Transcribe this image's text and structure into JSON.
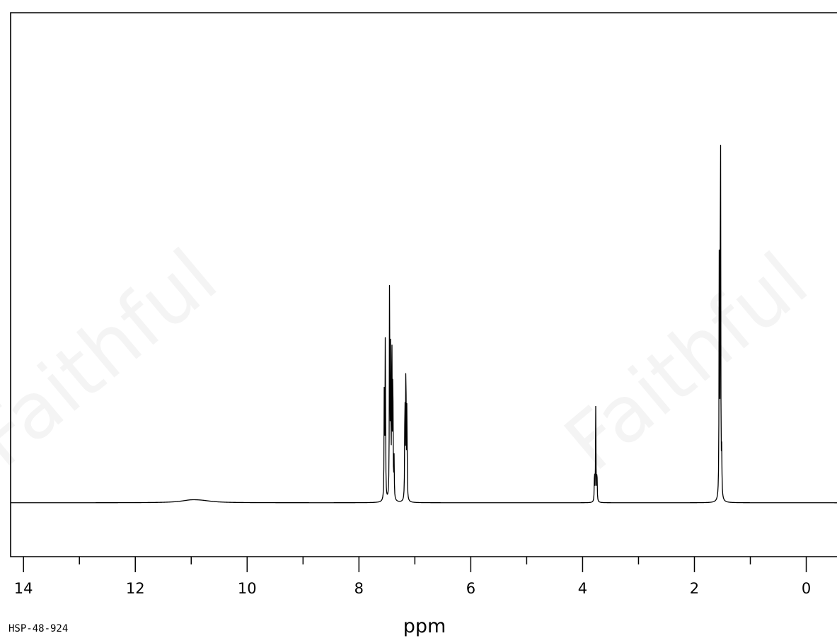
{
  "chart_data": {
    "type": "line",
    "title": "",
    "xlabel": "ppm",
    "ylabel": "",
    "x_reversed": true,
    "xlim": [
      14.23,
      -0.55
    ],
    "ylim": [
      -0.11,
      1.0
    ],
    "x_ticks_major": [
      14,
      12,
      10,
      8,
      6,
      4,
      2,
      0
    ],
    "x_tick_labels": [
      "14",
      "12",
      "10",
      "8",
      "6",
      "4",
      "2",
      "0"
    ],
    "x_ticks_minor": [
      13,
      11,
      9,
      7,
      5,
      3,
      1
    ],
    "grid": false,
    "legend": "none",
    "baseline": 0,
    "line_color": "#000000",
    "peaks": [
      {
        "ppm": 11.0,
        "height": 0.005,
        "group": "broad"
      },
      {
        "ppm": 10.8,
        "height": 0.003,
        "group": "broad"
      },
      {
        "ppm": 7.546,
        "height": 0.32,
        "group": "aromatic"
      },
      {
        "ppm": 7.528,
        "height": 0.39,
        "group": "aromatic"
      },
      {
        "ppm": 7.452,
        "height": 0.53,
        "group": "aromatic"
      },
      {
        "ppm": 7.434,
        "height": 0.32,
        "group": "aromatic"
      },
      {
        "ppm": 7.412,
        "height": 0.41,
        "group": "aromatic"
      },
      {
        "ppm": 7.394,
        "height": 0.32,
        "group": "aromatic"
      },
      {
        "ppm": 7.372,
        "height": 0.09,
        "group": "aromatic"
      },
      {
        "ppm": 7.178,
        "height": 0.26,
        "group": "aromatic"
      },
      {
        "ppm": 7.16,
        "height": 0.35,
        "group": "aromatic"
      },
      {
        "ppm": 7.142,
        "height": 0.22,
        "group": "aromatic"
      },
      {
        "ppm": 3.787,
        "height": 0.075,
        "group": "aliphatic"
      },
      {
        "ppm": 3.765,
        "height": 0.21,
        "group": "aliphatic"
      },
      {
        "ppm": 3.743,
        "height": 0.075,
        "group": "aliphatic"
      },
      {
        "ppm": 1.556,
        "height": 0.55,
        "group": "aliphatic"
      },
      {
        "ppm": 1.534,
        "height": 1.0,
        "group": "aliphatic"
      },
      {
        "ppm": 1.512,
        "height": 0.09,
        "group": "aliphatic"
      }
    ]
  },
  "watermark_text": "Faithful",
  "sample_id": "HSP-48-924"
}
